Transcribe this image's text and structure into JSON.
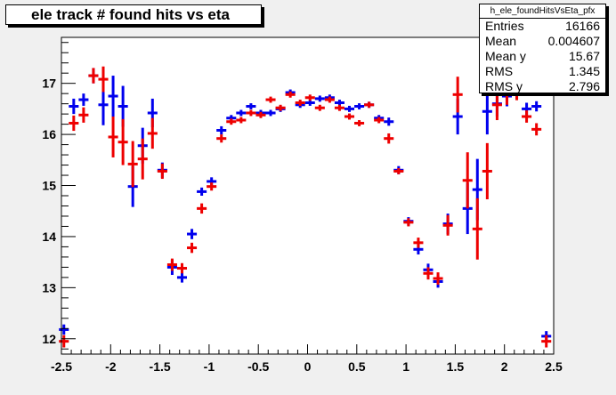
{
  "chart_data": {
    "type": "scatter",
    "title": "ele track # found hits vs eta",
    "xlim": [
      -2.5,
      2.5
    ],
    "ylim": [
      11.7,
      17.9
    ],
    "x_ticks": [
      "-2.5",
      "-2",
      "-1.5",
      "-1",
      "-0.5",
      "0",
      "0.5",
      "1",
      "1.5",
      "2",
      "2.5"
    ],
    "y_ticks": [
      "12",
      "13",
      "14",
      "15",
      "16",
      "17"
    ],
    "grid": false,
    "stats": {
      "name": "h_ele_foundHitsVsEta_pfx",
      "rows": [
        {
          "label": "Entries",
          "value": "16166"
        },
        {
          "label": "Mean",
          "value": "0.004607"
        },
        {
          "label": "Mean y",
          "value": "15.67"
        },
        {
          "label": "RMS",
          "value": "1.345"
        },
        {
          "label": "RMS y",
          "value": "2.796"
        }
      ]
    },
    "series": [
      {
        "color": "#0000ee",
        "points": [
          {
            "x": -2.475,
            "y": 12.18,
            "err": 0.1
          },
          {
            "x": -2.375,
            "y": 16.55,
            "err": 0.15
          },
          {
            "x": -2.275,
            "y": 16.68,
            "err": 0.12
          },
          {
            "x": -2.175,
            "y": 17.15,
            "err": 0.15
          },
          {
            "x": -2.075,
            "y": 16.58,
            "err": 0.4
          },
          {
            "x": -1.975,
            "y": 16.75,
            "err": 0.4
          },
          {
            "x": -1.875,
            "y": 16.55,
            "err": 0.4
          },
          {
            "x": -1.775,
            "y": 14.98,
            "err": 0.4
          },
          {
            "x": -1.675,
            "y": 15.78,
            "err": 0.35
          },
          {
            "x": -1.575,
            "y": 16.42,
            "err": 0.28
          },
          {
            "x": -1.475,
            "y": 15.3,
            "err": 0.15
          },
          {
            "x": -1.375,
            "y": 13.4,
            "err": 0.15
          },
          {
            "x": -1.275,
            "y": 13.2,
            "err": 0.1
          },
          {
            "x": -1.175,
            "y": 14.05,
            "err": 0.1
          },
          {
            "x": -1.075,
            "y": 14.88,
            "err": 0.08
          },
          {
            "x": -0.975,
            "y": 15.08,
            "err": 0.08
          },
          {
            "x": -0.875,
            "y": 16.08,
            "err": 0.08
          },
          {
            "x": -0.775,
            "y": 16.32,
            "err": 0.06
          },
          {
            "x": -0.675,
            "y": 16.42,
            "err": 0.06
          },
          {
            "x": -0.575,
            "y": 16.55,
            "err": 0.06
          },
          {
            "x": -0.475,
            "y": 16.42,
            "err": 0.06
          },
          {
            "x": -0.375,
            "y": 16.42,
            "err": 0.06
          },
          {
            "x": -0.275,
            "y": 16.5,
            "err": 0.06
          },
          {
            "x": -0.175,
            "y": 16.82,
            "err": 0.06
          },
          {
            "x": -0.075,
            "y": 16.58,
            "err": 0.06
          },
          {
            "x": 0.025,
            "y": 16.62,
            "err": 0.06
          },
          {
            "x": 0.125,
            "y": 16.7,
            "err": 0.06
          },
          {
            "x": 0.225,
            "y": 16.72,
            "err": 0.06
          },
          {
            "x": 0.325,
            "y": 16.62,
            "err": 0.06
          },
          {
            "x": 0.425,
            "y": 16.5,
            "err": 0.06
          },
          {
            "x": 0.525,
            "y": 16.55,
            "err": 0.06
          },
          {
            "x": 0.625,
            "y": 16.58,
            "err": 0.06
          },
          {
            "x": 0.725,
            "y": 16.32,
            "err": 0.06
          },
          {
            "x": 0.825,
            "y": 16.25,
            "err": 0.08
          },
          {
            "x": 0.925,
            "y": 15.3,
            "err": 0.08
          },
          {
            "x": 1.025,
            "y": 14.3,
            "err": 0.08
          },
          {
            "x": 1.125,
            "y": 13.75,
            "err": 0.1
          },
          {
            "x": 1.225,
            "y": 13.35,
            "err": 0.12
          },
          {
            "x": 1.325,
            "y": 13.12,
            "err": 0.12
          },
          {
            "x": 1.425,
            "y": 14.25,
            "err": 0.2
          },
          {
            "x": 1.525,
            "y": 16.35,
            "err": 0.35
          },
          {
            "x": 1.625,
            "y": 14.55,
            "err": 0.5
          },
          {
            "x": 1.725,
            "y": 14.92,
            "err": 0.6
          },
          {
            "x": 1.825,
            "y": 16.45,
            "err": 0.45
          },
          {
            "x": 1.925,
            "y": 16.6,
            "err": 0.25
          },
          {
            "x": 2.025,
            "y": 16.75,
            "err": 0.2
          },
          {
            "x": 2.125,
            "y": 16.85,
            "err": 0.15
          },
          {
            "x": 2.225,
            "y": 16.5,
            "err": 0.12
          },
          {
            "x": 2.325,
            "y": 16.55,
            "err": 0.1
          },
          {
            "x": 2.425,
            "y": 12.05,
            "err": 0.1
          }
        ]
      },
      {
        "color": "#ee0000",
        "points": [
          {
            "x": -2.475,
            "y": 11.95,
            "err": 0.12
          },
          {
            "x": -2.375,
            "y": 16.22,
            "err": 0.15
          },
          {
            "x": -2.275,
            "y": 16.38,
            "err": 0.15
          },
          {
            "x": -2.175,
            "y": 17.15,
            "err": 0.15
          },
          {
            "x": -2.075,
            "y": 17.08,
            "err": 0.25
          },
          {
            "x": -1.975,
            "y": 15.95,
            "err": 0.4
          },
          {
            "x": -1.875,
            "y": 15.85,
            "err": 0.45
          },
          {
            "x": -1.775,
            "y": 15.42,
            "err": 0.45
          },
          {
            "x": -1.675,
            "y": 15.52,
            "err": 0.4
          },
          {
            "x": -1.575,
            "y": 16.02,
            "err": 0.3
          },
          {
            "x": -1.475,
            "y": 15.28,
            "err": 0.15
          },
          {
            "x": -1.375,
            "y": 13.45,
            "err": 0.12
          },
          {
            "x": -1.275,
            "y": 13.38,
            "err": 0.1
          },
          {
            "x": -1.175,
            "y": 13.78,
            "err": 0.1
          },
          {
            "x": -1.075,
            "y": 14.55,
            "err": 0.1
          },
          {
            "x": -0.975,
            "y": 14.98,
            "err": 0.08
          },
          {
            "x": -0.875,
            "y": 15.92,
            "err": 0.08
          },
          {
            "x": -0.775,
            "y": 16.25,
            "err": 0.06
          },
          {
            "x": -0.675,
            "y": 16.28,
            "err": 0.06
          },
          {
            "x": -0.575,
            "y": 16.42,
            "err": 0.06
          },
          {
            "x": -0.475,
            "y": 16.38,
            "err": 0.06
          },
          {
            "x": -0.375,
            "y": 16.68,
            "err": 0.06
          },
          {
            "x": -0.275,
            "y": 16.52,
            "err": 0.06
          },
          {
            "x": -0.175,
            "y": 16.78,
            "err": 0.06
          },
          {
            "x": -0.075,
            "y": 16.62,
            "err": 0.06
          },
          {
            "x": 0.025,
            "y": 16.72,
            "err": 0.06
          },
          {
            "x": 0.125,
            "y": 16.52,
            "err": 0.06
          },
          {
            "x": 0.225,
            "y": 16.68,
            "err": 0.06
          },
          {
            "x": 0.325,
            "y": 16.52,
            "err": 0.06
          },
          {
            "x": 0.425,
            "y": 16.35,
            "err": 0.06
          },
          {
            "x": 0.525,
            "y": 16.22,
            "err": 0.06
          },
          {
            "x": 0.625,
            "y": 16.58,
            "err": 0.06
          },
          {
            "x": 0.725,
            "y": 16.28,
            "err": 0.06
          },
          {
            "x": 0.825,
            "y": 15.92,
            "err": 0.1
          },
          {
            "x": 0.925,
            "y": 15.28,
            "err": 0.06
          },
          {
            "x": 1.025,
            "y": 14.28,
            "err": 0.08
          },
          {
            "x": 1.125,
            "y": 13.88,
            "err": 0.1
          },
          {
            "x": 1.225,
            "y": 13.28,
            "err": 0.12
          },
          {
            "x": 1.325,
            "y": 13.18,
            "err": 0.12
          },
          {
            "x": 1.425,
            "y": 14.22,
            "err": 0.2
          },
          {
            "x": 1.525,
            "y": 16.78,
            "err": 0.35
          },
          {
            "x": 1.625,
            "y": 15.1,
            "err": 0.55
          },
          {
            "x": 1.725,
            "y": 14.15,
            "err": 0.6
          },
          {
            "x": 1.825,
            "y": 15.28,
            "err": 0.55
          },
          {
            "x": 1.925,
            "y": 16.58,
            "err": 0.3
          },
          {
            "x": 2.025,
            "y": 16.78,
            "err": 0.2
          },
          {
            "x": 2.125,
            "y": 16.82,
            "err": 0.15
          },
          {
            "x": 2.225,
            "y": 16.35,
            "err": 0.12
          },
          {
            "x": 2.325,
            "y": 16.1,
            "err": 0.12
          },
          {
            "x": 2.425,
            "y": 11.95,
            "err": 0.12
          }
        ]
      }
    ]
  }
}
